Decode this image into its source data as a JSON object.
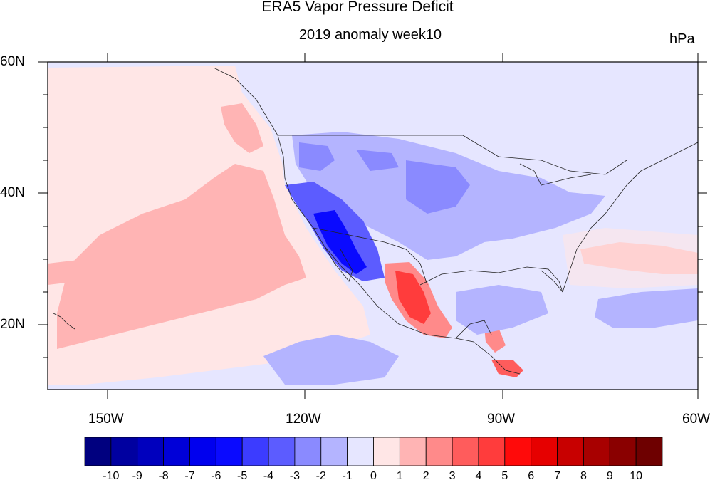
{
  "title": "ERA5 Vapor Pressure Deficit",
  "subtitle": "2019 anomaly week10",
  "units": "hPa",
  "lat_labels": [
    "60N",
    "40N",
    "20N"
  ],
  "lon_labels": [
    "150W",
    "120W",
    "90W",
    "60W"
  ],
  "colorbar": {
    "labels": [
      "-10",
      "-9",
      "-8",
      "-7",
      "-6",
      "-5",
      "-4",
      "-3",
      "-2",
      "-1",
      "0",
      "1",
      "2",
      "3",
      "4",
      "5",
      "6",
      "7",
      "8",
      "9",
      "10"
    ],
    "colors": [
      "#00007f",
      "#0000a0",
      "#0000be",
      "#0000d8",
      "#0000ee",
      "#0a0aff",
      "#3c3cff",
      "#5c5cff",
      "#8a8aff",
      "#b4b4ff",
      "#e6e6ff",
      "#ffe6e6",
      "#ffb4b4",
      "#ff8a8a",
      "#ff5c5c",
      "#ff3c3c",
      "#ff0a0a",
      "#e60000",
      "#c80000",
      "#a80000",
      "#8a0000",
      "#6e0000"
    ]
  },
  "chart_data": {
    "type": "heatmap",
    "title": "ERA5 Vapor Pressure Deficit",
    "subtitle": "2019 anomaly week10",
    "units": "hPa",
    "lon_range": [
      -160,
      -60
    ],
    "lat_range": [
      10,
      60
    ],
    "lon_ticks": [
      -150,
      -120,
      -90,
      -60
    ],
    "lat_ticks": [
      60,
      40,
      20
    ],
    "color_levels": [
      -10,
      -9,
      -8,
      -7,
      -6,
      -5,
      -4,
      -3,
      -2,
      -1,
      0,
      1,
      2,
      3,
      4,
      5,
      6,
      7,
      8,
      9,
      10
    ]
  }
}
